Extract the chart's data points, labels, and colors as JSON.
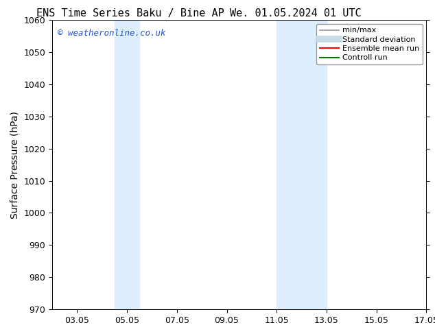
{
  "title_left": "ENS Time Series Baku / Bine AP",
  "title_right": "We. 01.05.2024 01 UTC",
  "ylabel": "Surface Pressure (hPa)",
  "xlim": [
    2.05,
    17.05
  ],
  "ylim": [
    970,
    1060
  ],
  "yticks": [
    970,
    980,
    990,
    1000,
    1010,
    1020,
    1030,
    1040,
    1050,
    1060
  ],
  "xtick_labels": [
    "03.05",
    "05.05",
    "07.05",
    "09.05",
    "11.05",
    "13.05",
    "15.05",
    "17.05"
  ],
  "xtick_positions": [
    3.05,
    5.05,
    7.05,
    9.05,
    11.05,
    13.05,
    15.05,
    17.05
  ],
  "shaded_regions": [
    {
      "xmin": 4.55,
      "xmax": 5.55
    },
    {
      "xmin": 11.05,
      "xmax": 13.05
    }
  ],
  "shade_color": "#ddeeff",
  "background_color": "#ffffff",
  "watermark_text": "© weatheronline.co.uk",
  "watermark_color": "#2255cc",
  "legend_items": [
    {
      "label": "min/max",
      "color": "#aaaaaa",
      "lw": 1.5
    },
    {
      "label": "Standard deviation",
      "color": "#c8dce8",
      "lw": 7
    },
    {
      "label": "Ensemble mean run",
      "color": "#ff0000",
      "lw": 1.5
    },
    {
      "label": "Controll run",
      "color": "#007700",
      "lw": 1.5
    }
  ],
  "title_fontsize": 11,
  "axis_label_fontsize": 10,
  "tick_fontsize": 9,
  "watermark_fontsize": 9,
  "legend_fontsize": 8
}
